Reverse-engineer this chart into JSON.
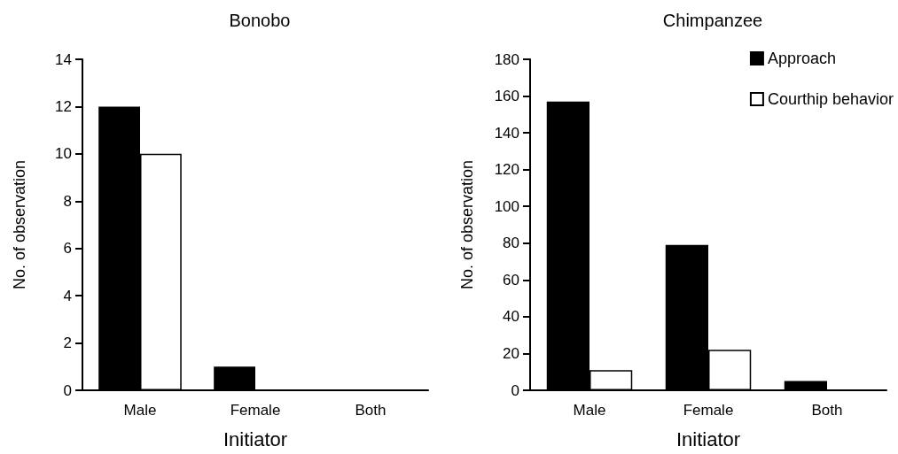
{
  "chart_data": [
    {
      "type": "bar",
      "title": "Bonobo",
      "xlabel": "Initiator",
      "ylabel": "No. of observation",
      "categories": [
        "Male",
        "Female",
        "Both"
      ],
      "series": [
        {
          "color": "#000000",
          "values": [
            12,
            1,
            0
          ]
        },
        {
          "color": "#ffffff",
          "values": [
            10,
            0,
            0
          ]
        }
      ],
      "ylim": [
        0,
        14
      ],
      "yticks": [
        0,
        2,
        4,
        6,
        8,
        10,
        12,
        14
      ],
      "grid": false,
      "legend": false
    },
    {
      "type": "bar",
      "title": "Chimpanzee",
      "xlabel": "Initiator",
      "ylabel": "No. of observation",
      "categories": [
        "Male",
        "Female",
        "Both"
      ],
      "series": [
        {
          "name": "Approach",
          "color": "#000000",
          "values": [
            157,
            79,
            5
          ]
        },
        {
          "name": "Courthip behavior",
          "color": "#ffffff",
          "values": [
            11,
            22,
            0
          ]
        }
      ],
      "ylim": [
        0,
        180
      ],
      "yticks": [
        0,
        20,
        40,
        60,
        80,
        100,
        120,
        140,
        160,
        180
      ],
      "grid": false,
      "legend": "top right"
    }
  ]
}
